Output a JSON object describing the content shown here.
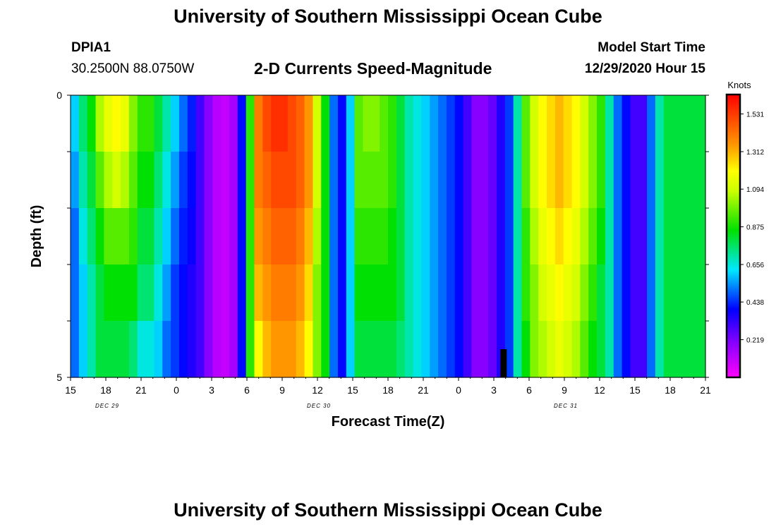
{
  "page": {
    "title": "University of Southern Mississippi Ocean Cube",
    "footer_title": "University of Southern Mississippi Ocean Cube",
    "station_id": "DPIA1",
    "location": "30.2500N 88.0750W",
    "model_start_label": "Model Start Time",
    "model_start_value": "12/29/2020 Hour 15"
  },
  "chart_data": {
    "type": "heatmap",
    "title": "2-D Currents Speed-Magnitude",
    "xlabel": "Forecast Time(Z)",
    "ylabel": "Depth (ft)",
    "colorbar_label": "Knots",
    "x_start_hour": 15,
    "x_end_hour": 21,
    "x_ticks": [
      "15",
      "18",
      "21",
      "0",
      "3",
      "6",
      "9",
      "12",
      "15",
      "18",
      "21",
      "0",
      "3",
      "6",
      "9",
      "12",
      "15",
      "18",
      "21"
    ],
    "date_labels": [
      {
        "text": "DEC 29",
        "tick_index": 1
      },
      {
        "text": "DEC 30",
        "tick_index": 7
      },
      {
        "text": "DEC 31",
        "tick_index": 14
      }
    ],
    "y_tick_labels": [
      "0",
      "5"
    ],
    "ylim": [
      0,
      5
    ],
    "depth_levels_ft": [
      0,
      1,
      2,
      3,
      4,
      5
    ],
    "colorscale_min": 0,
    "colorscale_max": 1.64,
    "colorbar_ticks": [
      "1.531",
      "1.312",
      "1.094",
      "0.875",
      "0.656",
      "0.438",
      "0.219"
    ],
    "colorbar_tick_values": [
      1.531,
      1.312,
      1.094,
      0.875,
      0.656,
      0.438,
      0.219
    ],
    "colors": {
      "magenta": "#ff00ff",
      "purple": "#8a00ff",
      "blue": "#0000ff",
      "cyan": "#00e8ff",
      "green": "#00e000",
      "yellow": "#ffff00",
      "orange": "#ff9900",
      "red": "#ff0000",
      "missing": "#000000"
    },
    "speed_knots_by_depth": [
      [
        0.6,
        0.75,
        0.85,
        1.05,
        1.15,
        1.2,
        1.15,
        1.0,
        0.9,
        0.9,
        0.8,
        0.7,
        0.6,
        0.5,
        0.42,
        0.3,
        0.2,
        0.12,
        0.1,
        0.15,
        0.4,
        0.9,
        1.4,
        1.5,
        1.55,
        1.55,
        1.5,
        1.45,
        1.35,
        1.1,
        0.85,
        0.5,
        0.4,
        0.6,
        0.95,
        1.0,
        1.0,
        0.95,
        0.9,
        0.8,
        0.7,
        0.65,
        0.6,
        0.55,
        0.5,
        0.45,
        0.4,
        0.3,
        0.2,
        0.2,
        0.25,
        0.35,
        0.45,
        0.7,
        0.95,
        1.1,
        1.2,
        1.25,
        1.3,
        1.25,
        1.2,
        1.1,
        1.0,
        0.9,
        0.7,
        0.5,
        0.4,
        0.3,
        0.3,
        0.5,
        0.7,
        0.8,
        0.8,
        0.8,
        0.8,
        0.8
      ],
      [
        0.55,
        0.7,
        0.8,
        0.95,
        1.05,
        1.1,
        1.05,
        0.95,
        0.85,
        0.85,
        0.75,
        0.65,
        0.55,
        0.45,
        0.4,
        0.3,
        0.2,
        0.12,
        0.1,
        0.15,
        0.4,
        0.9,
        1.4,
        1.45,
        1.5,
        1.5,
        1.5,
        1.45,
        1.35,
        1.1,
        0.85,
        0.5,
        0.4,
        0.6,
        0.95,
        0.95,
        0.95,
        0.95,
        0.9,
        0.8,
        0.7,
        0.65,
        0.6,
        0.55,
        0.5,
        0.45,
        0.4,
        0.3,
        0.2,
        0.2,
        0.25,
        0.35,
        0.45,
        0.7,
        0.95,
        1.1,
        1.2,
        1.25,
        1.3,
        1.25,
        1.2,
        1.1,
        1.0,
        0.9,
        0.7,
        0.5,
        0.4,
        0.3,
        0.3,
        0.5,
        0.7,
        0.8,
        0.8,
        0.8,
        0.8,
        0.8
      ],
      [
        0.5,
        0.65,
        0.75,
        0.85,
        0.95,
        0.95,
        0.95,
        0.9,
        0.8,
        0.8,
        0.7,
        0.6,
        0.5,
        0.42,
        0.38,
        0.3,
        0.2,
        0.12,
        0.1,
        0.15,
        0.4,
        0.9,
        1.35,
        1.4,
        1.45,
        1.45,
        1.45,
        1.4,
        1.3,
        1.05,
        0.85,
        0.5,
        0.4,
        0.6,
        0.9,
        0.9,
        0.9,
        0.9,
        0.85,
        0.8,
        0.7,
        0.65,
        0.6,
        0.55,
        0.5,
        0.45,
        0.4,
        0.3,
        0.2,
        0.2,
        0.25,
        0.35,
        0.45,
        0.7,
        0.9,
        1.05,
        1.15,
        1.2,
        1.25,
        1.2,
        1.15,
        1.05,
        0.95,
        0.85,
        0.7,
        0.5,
        0.4,
        0.3,
        0.3,
        0.5,
        0.7,
        0.8,
        0.8,
        0.8,
        0.8,
        0.8
      ],
      [
        0.5,
        0.6,
        0.7,
        0.8,
        0.85,
        0.85,
        0.85,
        0.85,
        0.75,
        0.75,
        0.65,
        0.55,
        0.45,
        0.4,
        0.35,
        0.3,
        0.2,
        0.12,
        0.1,
        0.15,
        0.4,
        0.9,
        1.3,
        1.35,
        1.4,
        1.4,
        1.4,
        1.35,
        1.25,
        1.0,
        0.85,
        0.5,
        0.4,
        0.6,
        0.85,
        0.85,
        0.85,
        0.85,
        0.85,
        0.8,
        0.7,
        0.65,
        0.6,
        0.55,
        0.5,
        0.45,
        0.4,
        0.3,
        0.2,
        0.2,
        0.25,
        0.35,
        0.45,
        0.7,
        0.9,
        1.0,
        1.1,
        1.15,
        1.2,
        1.15,
        1.1,
        1.0,
        0.9,
        0.8,
        0.7,
        0.5,
        0.4,
        0.3,
        0.3,
        0.5,
        0.7,
        0.8,
        0.8,
        0.8,
        0.8,
        0.8
      ],
      [
        0.5,
        0.6,
        0.7,
        0.8,
        0.8,
        0.8,
        0.8,
        0.75,
        0.65,
        0.65,
        0.6,
        0.5,
        0.45,
        0.4,
        0.35,
        0.3,
        0.2,
        0.12,
        0.1,
        0.15,
        0.4,
        0.9,
        1.2,
        1.3,
        1.35,
        1.35,
        1.35,
        1.3,
        1.2,
        1.0,
        0.85,
        0.5,
        0.4,
        0.6,
        0.8,
        0.8,
        0.8,
        0.8,
        0.8,
        0.75,
        0.7,
        0.65,
        0.6,
        0.55,
        0.5,
        0.45,
        0.4,
        0.3,
        0.2,
        0.2,
        0.25,
        0.35,
        0.45,
        0.7,
        0.85,
        1.0,
        1.05,
        1.1,
        1.15,
        1.1,
        1.05,
        0.95,
        0.85,
        0.8,
        0.7,
        0.5,
        0.4,
        0.3,
        0.3,
        0.5,
        0.7,
        0.8,
        0.8,
        0.8,
        0.8,
        0.8
      ],
      [
        0.6,
        0.7,
        0.75,
        0.75,
        0.75,
        0.7,
        0.65,
        0.6,
        0.55,
        0.55,
        0.5,
        0.45,
        0.4,
        0.35,
        0.3,
        0.25,
        0.2,
        0.15,
        0.1,
        0.15,
        0.45,
        0.95,
        1.1,
        1.2,
        1.25,
        1.25,
        1.2,
        1.15,
        1.05,
        0.9,
        0.75,
        0.5,
        0.4,
        0.6,
        0.75,
        0.75,
        0.75,
        0.75,
        0.75,
        0.7,
        0.65,
        0.6,
        0.55,
        0.5,
        0.45,
        0.4,
        0.35,
        0.3,
        0.2,
        0.2,
        0.25,
        0.35,
        0.5,
        0.75,
        0.9,
        1.0,
        1.1,
        1.15,
        1.15,
        1.1,
        1.05,
        0.95,
        0.85,
        0.75,
        0.65,
        0.5,
        0.4,
        0.3,
        0.3,
        0.5,
        0.7,
        0.8,
        0.8,
        0.8,
        0.8,
        0.8
      ]
    ],
    "missing_data_marks": [
      {
        "forecast_hour": 3.8,
        "depth_from_ft": 4.5,
        "depth_to_ft": 5.0
      }
    ]
  }
}
